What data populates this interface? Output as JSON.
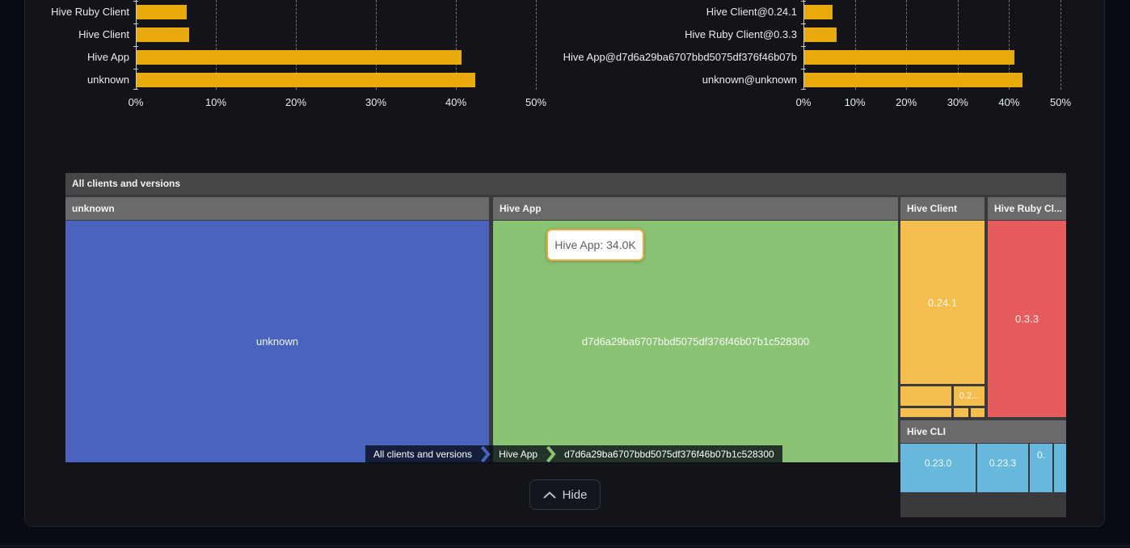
{
  "chart_data": [
    {
      "type": "bar",
      "orientation": "horizontal",
      "categories": [
        "Hive Ruby Client",
        "Hive Client",
        "Hive App",
        "unknown"
      ],
      "values": [
        6.3,
        6.6,
        40.6,
        42.3
      ],
      "xticks": [
        "0%",
        "10%",
        "20%",
        "30%",
        "40%",
        "50%"
      ],
      "xlim": [
        0,
        50
      ],
      "unit": "percent",
      "bar_color": "#e9aa0e",
      "grid": "dashed-vertical",
      "legend": "none"
    },
    {
      "type": "bar",
      "orientation": "horizontal",
      "categories": [
        "Hive Client@0.24.1",
        "Hive Ruby Client@0.3.3",
        "Hive App@d7d6a29ba6707bbd5075df376f46b07b",
        "unknown@unknown"
      ],
      "values": [
        5.5,
        6.3,
        40.9,
        42.5
      ],
      "xticks": [
        "0%",
        "10%",
        "20%",
        "30%",
        "40%",
        "50%"
      ],
      "xlim": [
        0,
        50
      ],
      "unit": "percent",
      "bar_color": "#e9aa0e",
      "grid": "dashed-vertical",
      "legend": "none"
    },
    {
      "type": "treemap",
      "title": "All clients and versions",
      "tooltip": {
        "text": "Hive App: 34.0K",
        "label": "Hive App",
        "value": "34.0K"
      },
      "groups": [
        {
          "name": "unknown",
          "color": "#4a63bd",
          "cells": [
            {
              "label": "unknown"
            }
          ]
        },
        {
          "name": "Hive App",
          "color": "#8bc374",
          "cells": [
            {
              "label": "d7d6a29ba6707bbd5075df376f46b07b1c528300",
              "value": "34.0K"
            }
          ]
        },
        {
          "name": "Hive Client",
          "color": "#f5bd4d",
          "cells": [
            {
              "label": "0.24.1"
            },
            {
              "label": ""
            },
            {
              "label": "0.2..."
            },
            {
              "label": ""
            },
            {
              "label": ""
            },
            {
              "label": ""
            }
          ]
        },
        {
          "name": "Hive Ruby Cl...",
          "color": "#e65c5c",
          "cells": [
            {
              "label": "0.3.3"
            }
          ]
        },
        {
          "name": "Hive CLI",
          "color": "#68b7dc",
          "cells": [
            {
              "label": "0.23.0"
            },
            {
              "label": "0.23.3"
            },
            {
              "label": "0."
            },
            {
              "label": ""
            }
          ]
        }
      ],
      "breadcrumb": [
        "All clients and versions",
        "Hive App",
        "d7d6a29ba6707bbd5075df376f46b07b1c528300"
      ]
    }
  ],
  "footer": {
    "hide_label": "Hide"
  },
  "colors": {
    "bar": "#e9aa0e",
    "axis": "#c9ccd0",
    "gridline": "#6f7277",
    "treemap_blue": "#4a63bd",
    "treemap_green": "#8bc374",
    "treemap_orange": "#f5bd4d",
    "treemap_red": "#e65c5c",
    "treemap_lightblue": "#68b7dc",
    "tooltip_border": "#eda73c",
    "panel_bg": "#121419",
    "page_bg": "#070b12"
  }
}
